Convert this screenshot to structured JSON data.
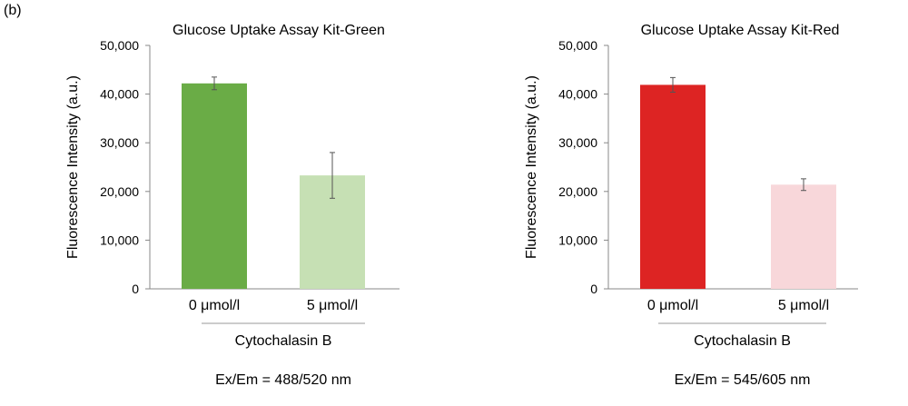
{
  "panel_label": "(b)",
  "chart_data": [
    {
      "type": "bar",
      "title": "Glucose Uptake Assay Kit-Green",
      "categories": [
        "0 μmol/l",
        "5 μmol/l"
      ],
      "values": [
        42200,
        23300
      ],
      "errors": [
        1300,
        4700
      ],
      "bar_colors": [
        "#6aac46",
        "#c6e0b4"
      ],
      "ylabel": "Fluorescence Intensity (a.u.)",
      "ylim": [
        0,
        50000
      ],
      "yticks": [
        0,
        10000,
        20000,
        30000,
        40000,
        50000
      ],
      "ytick_labels": [
        "0",
        "10,000",
        "20,000",
        "30,000",
        "40,000",
        "50,000"
      ],
      "group_label": "Cytochalasin B",
      "footnote": "Ex/Em = 488/520 nm",
      "grid": false,
      "legend": "none"
    },
    {
      "type": "bar",
      "title": "Glucose Uptake Assay Kit-Red",
      "categories": [
        "0 μmol/l",
        "5 μmol/l"
      ],
      "values": [
        41900,
        21400
      ],
      "errors": [
        1500,
        1200
      ],
      "bar_colors": [
        "#dd2423",
        "#f8d7da"
      ],
      "ylabel": "Fluorescence Intensity (a.u.)",
      "ylim": [
        0,
        50000
      ],
      "yticks": [
        0,
        10000,
        20000,
        30000,
        40000,
        50000
      ],
      "ytick_labels": [
        "0",
        "10,000",
        "20,000",
        "30,000",
        "40,000",
        "50,000"
      ],
      "group_label": "Cytochalasin B",
      "footnote": "Ex/Em = 545/605 nm",
      "grid": false,
      "legend": "none"
    }
  ]
}
